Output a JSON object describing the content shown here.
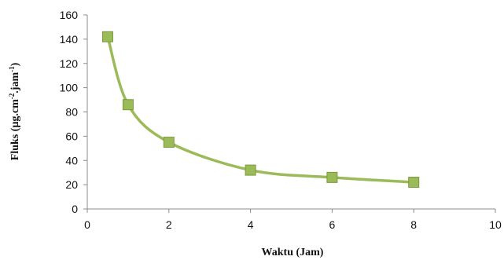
{
  "chart_data": {
    "type": "line",
    "title": "",
    "xlabel": "Waktu (Jam)",
    "ylabel": {
      "parts": [
        {
          "text": "Fluks (µg.cm",
          "sup": false
        },
        {
          "text": "-2",
          "sup": true
        },
        {
          "text": ".jam",
          "sup": false
        },
        {
          "text": "-1",
          "sup": true
        },
        {
          "text": ")",
          "sup": false
        }
      ]
    },
    "xlim": [
      0,
      10
    ],
    "ylim": [
      0,
      160
    ],
    "xticks": [
      0,
      2,
      4,
      6,
      8,
      10
    ],
    "yticks": [
      0,
      20,
      40,
      60,
      80,
      100,
      120,
      140,
      160
    ],
    "grid": false,
    "legend": "none",
    "marker": "square",
    "line_style": "smooth",
    "color": "#9bbb59",
    "marker_fill": "#9bbb59",
    "marker_edge": "#7a9a3c",
    "series": [
      {
        "x": [
          0.5,
          1,
          2,
          4,
          6,
          8
        ],
        "y": [
          142,
          86,
          55,
          32,
          26,
          22
        ]
      }
    ]
  }
}
